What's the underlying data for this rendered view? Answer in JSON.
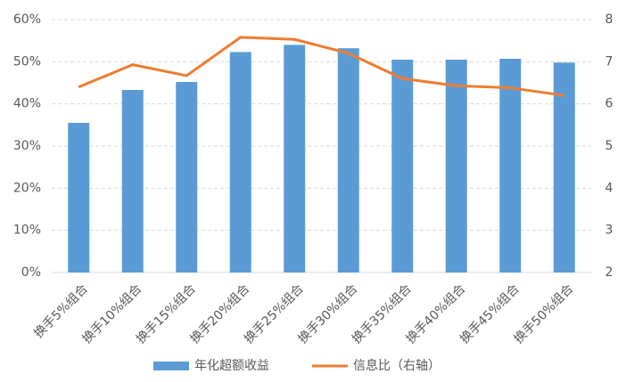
{
  "chart_data": {
    "type": "bar",
    "categories": [
      "换手5%组合",
      "换手10%组合",
      "换手15%组合",
      "换手20%组合",
      "换手25%组合",
      "换手30%组合",
      "换手35%组合",
      "换手40%组合",
      "换手45%组合",
      "换手50%组合"
    ],
    "series": [
      {
        "name": "年化超额收益",
        "color": "#5b9bd5",
        "values": [
          35.5,
          43.3,
          45.2,
          52.3,
          54.0,
          53.2,
          50.5,
          50.5,
          50.7,
          49.8
        ]
      },
      {
        "name": "信息比（右轴）",
        "color": "#ed7d31",
        "axis": "y2",
        "type": "line",
        "values": [
          6.4,
          6.93,
          6.67,
          7.58,
          7.53,
          7.2,
          6.6,
          6.43,
          6.38,
          6.2
        ]
      }
    ],
    "ylim": [
      0,
      60
    ],
    "yticks": [
      {
        "value": 0,
        "label": "0%"
      },
      {
        "value": 10,
        "label": "10%"
      },
      {
        "value": 20,
        "label": "20%"
      },
      {
        "value": 30,
        "label": "30%"
      },
      {
        "value": 40,
        "label": "40%"
      },
      {
        "value": 50,
        "label": "50%"
      },
      {
        "value": 60,
        "label": "60%"
      }
    ],
    "y2lim": [
      2,
      8
    ],
    "y2ticks": [
      2,
      3,
      4,
      5,
      6,
      7,
      8
    ],
    "grid": true
  }
}
